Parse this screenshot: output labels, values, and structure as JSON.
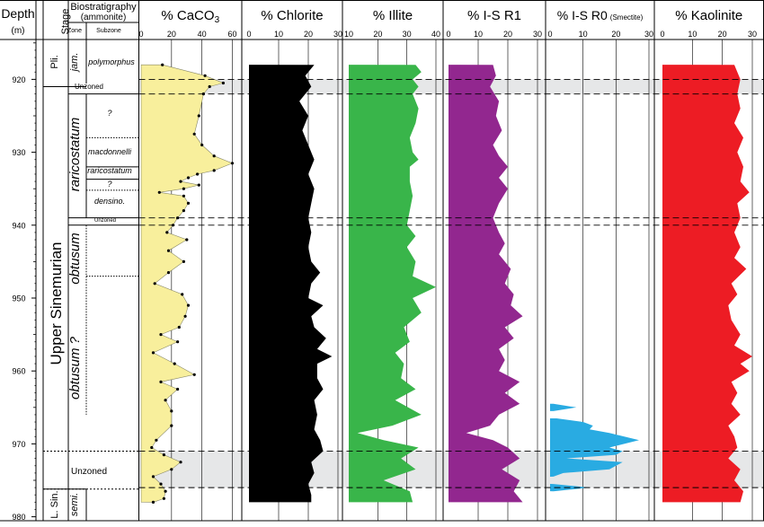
{
  "header": {
    "depth": "Depth",
    "depth_unit": "(m)",
    "stage": "Stage",
    "biostrat": "Biostratigraphy",
    "biostrat_sub": "(ammonite)",
    "zone": "Zone",
    "subzone": "Subzone"
  },
  "strat": {
    "stages": [
      "Pli.",
      "Upper Sinemurian",
      "L. Sin."
    ],
    "zones": [
      "jam.",
      "raricostatum",
      "obtusum",
      "obtusum ?",
      "semi."
    ],
    "subzones": [
      "polymorphus",
      "?",
      "macdonnelli",
      "raricostatum",
      "?",
      "densino."
    ],
    "unzoned": [
      "Unzoned",
      "Unzoned",
      "Unzoned"
    ]
  },
  "colors": {
    "caco3": "#f8ef9c",
    "chlorite": "#000000",
    "illite": "#39b54a",
    "isr1": "#92278f",
    "isr0": "#29abe2",
    "kaolinite": "#ed1c24",
    "band": "#e6e7e8"
  },
  "chart_data": {
    "type": "area",
    "y_axis": {
      "label": "Depth",
      "unit": "(m)",
      "range": [
        913,
        980
      ],
      "ticks": [
        920,
        930,
        940,
        950,
        960,
        970,
        980
      ],
      "inverted": true
    },
    "grey_bands": [
      [
        920,
        922
      ],
      [
        971,
        976
      ]
    ],
    "dashed_lines": [
      920,
      922,
      939,
      940,
      971,
      976
    ],
    "panels": [
      {
        "key": "caco3",
        "title_main": "% CaCO",
        "title_sub": "3",
        "xlim": [
          0,
          65
        ],
        "ticks": [
          0,
          20,
          40,
          60
        ],
        "style": "points",
        "points": [
          [
            918,
            14
          ],
          [
            919.5,
            42
          ],
          [
            920.5,
            54
          ],
          [
            921,
            45
          ],
          [
            922,
            41
          ],
          [
            925,
            38
          ],
          [
            927.5,
            35
          ],
          [
            929,
            40
          ],
          [
            930.5,
            48
          ],
          [
            931.5,
            60
          ],
          [
            932.5,
            48
          ],
          [
            933,
            37
          ],
          [
            933.5,
            31
          ],
          [
            934,
            26
          ],
          [
            934.5,
            38
          ],
          [
            935,
            28
          ],
          [
            935.5,
            12
          ],
          [
            936,
            28
          ],
          [
            937,
            31
          ],
          [
            938,
            28
          ],
          [
            939,
            24
          ],
          [
            940,
            21
          ],
          [
            941,
            17
          ],
          [
            942,
            30
          ],
          [
            943.5,
            18
          ],
          [
            945,
            28
          ],
          [
            946.5,
            18
          ],
          [
            948,
            9
          ],
          [
            949.5,
            27
          ],
          [
            951,
            31
          ],
          [
            952.5,
            29
          ],
          [
            954,
            25
          ],
          [
            955,
            13
          ],
          [
            956,
            24
          ],
          [
            957.5,
            8
          ],
          [
            959,
            22
          ],
          [
            960.5,
            35
          ],
          [
            961.5,
            13
          ],
          [
            962.5,
            24
          ],
          [
            964,
            16
          ],
          [
            965.5,
            20
          ],
          [
            967.5,
            20
          ],
          [
            969.5,
            10
          ],
          [
            970.5,
            7
          ],
          [
            971.5,
            15
          ],
          [
            972.5,
            26
          ],
          [
            973.5,
            20
          ],
          [
            974.5,
            8
          ],
          [
            975.5,
            13
          ],
          [
            976.5,
            16
          ],
          [
            977.5,
            15
          ],
          [
            978,
            8
          ]
        ]
      },
      {
        "key": "chlorite",
        "title_main": "% Chlorite",
        "title_sub": "",
        "xlim": [
          0,
          30
        ],
        "ticks": [
          0,
          10,
          20,
          30
        ],
        "style": "area",
        "points": [
          [
            918,
            22
          ],
          [
            919.5,
            19
          ],
          [
            921,
            21
          ],
          [
            923,
            17
          ],
          [
            925,
            20
          ],
          [
            927,
            18
          ],
          [
            929,
            20
          ],
          [
            931,
            22
          ],
          [
            933,
            20
          ],
          [
            935,
            22
          ],
          [
            937,
            21
          ],
          [
            939,
            20
          ],
          [
            941,
            21
          ],
          [
            943,
            20
          ],
          [
            945,
            21
          ],
          [
            946.5,
            24
          ],
          [
            948,
            21
          ],
          [
            950,
            20
          ],
          [
            951,
            25
          ],
          [
            952.5,
            21
          ],
          [
            954,
            22
          ],
          [
            955.5,
            26
          ],
          [
            957,
            23
          ],
          [
            958,
            28
          ],
          [
            959,
            23
          ],
          [
            961,
            23
          ],
          [
            962.5,
            25
          ],
          [
            964,
            22
          ],
          [
            966,
            23
          ],
          [
            968,
            22
          ],
          [
            969.5,
            24
          ],
          [
            971,
            25
          ],
          [
            972.5,
            21
          ],
          [
            974,
            22
          ],
          [
            975.5,
            20
          ],
          [
            977,
            21
          ],
          [
            978,
            21
          ]
        ]
      },
      {
        "key": "illite",
        "title_main": "% Illite",
        "title_sub": "",
        "xlim": [
          10,
          40
        ],
        "ticks": [
          10,
          20,
          30,
          40
        ],
        "style": "area",
        "points": [
          [
            918,
            33
          ],
          [
            919,
            35
          ],
          [
            920,
            32
          ],
          [
            921,
            34
          ],
          [
            922,
            32
          ],
          [
            924,
            34
          ],
          [
            926,
            33
          ],
          [
            928,
            31
          ],
          [
            930,
            32
          ],
          [
            931,
            34
          ],
          [
            932,
            31
          ],
          [
            934,
            31
          ],
          [
            936,
            32
          ],
          [
            938,
            31
          ],
          [
            940,
            30
          ],
          [
            941.5,
            33
          ],
          [
            943,
            30
          ],
          [
            945,
            33
          ],
          [
            947,
            32
          ],
          [
            948.5,
            40
          ],
          [
            950,
            32
          ],
          [
            952,
            35
          ],
          [
            954,
            29
          ],
          [
            956,
            31
          ],
          [
            957.5,
            26
          ],
          [
            959,
            29
          ],
          [
            961,
            28
          ],
          [
            962.5,
            33
          ],
          [
            964,
            26
          ],
          [
            966,
            35
          ],
          [
            967.5,
            25
          ],
          [
            968.5,
            13
          ],
          [
            969.5,
            22
          ],
          [
            970.5,
            34
          ],
          [
            972,
            28
          ],
          [
            973.5,
            33
          ],
          [
            975,
            22
          ],
          [
            976.5,
            31
          ],
          [
            978,
            32
          ]
        ]
      },
      {
        "key": "isr1",
        "title_main": "% I-S R1",
        "title_sub": "",
        "xlim": [
          0,
          30
        ],
        "ticks": [
          0,
          10,
          20,
          30
        ],
        "style": "area",
        "points": [
          [
            918,
            15
          ],
          [
            919.5,
            16
          ],
          [
            921,
            14
          ],
          [
            923,
            17
          ],
          [
            925,
            16
          ],
          [
            927,
            18
          ],
          [
            929,
            15
          ],
          [
            930.5,
            17
          ],
          [
            932,
            20
          ],
          [
            933.5,
            17
          ],
          [
            935,
            20
          ],
          [
            937,
            17
          ],
          [
            939,
            15
          ],
          [
            941,
            17
          ],
          [
            942.5,
            19
          ],
          [
            944,
            17
          ],
          [
            946,
            21
          ],
          [
            948,
            19
          ],
          [
            949.5,
            22
          ],
          [
            951,
            21
          ],
          [
            952.5,
            25
          ],
          [
            954,
            19
          ],
          [
            955.5,
            22
          ],
          [
            957,
            17
          ],
          [
            958.5,
            19
          ],
          [
            960,
            17
          ],
          [
            961.5,
            24
          ],
          [
            963,
            19
          ],
          [
            964.5,
            24
          ],
          [
            966,
            17
          ],
          [
            967.5,
            14
          ],
          [
            968.5,
            6
          ],
          [
            969.5,
            15
          ],
          [
            970.5,
            20
          ],
          [
            972,
            24
          ],
          [
            973.5,
            18
          ],
          [
            975,
            24
          ],
          [
            976.5,
            22
          ],
          [
            978,
            25
          ]
        ]
      },
      {
        "key": "isr0",
        "title_main": "% I-S R0",
        "title_sub": "(Smectite)",
        "xlim": [
          0,
          30
        ],
        "ticks": [
          0,
          10,
          20,
          30
        ],
        "style": "blocks",
        "blocks": [
          [
            [
              964.5,
              1
            ],
            [
              965,
              8
            ],
            [
              965.5,
              1
            ]
          ],
          [
            [
              966.5,
              2
            ],
            [
              967,
              10
            ],
            [
              967.5,
              13
            ],
            [
              968,
              12
            ],
            [
              968.5,
              18
            ],
            [
              969.5,
              27
            ],
            [
              970.5,
              18
            ],
            [
              971,
              22
            ],
            [
              971.5,
              20
            ],
            [
              972,
              5
            ],
            [
              972.5,
              22
            ],
            [
              973.5,
              18
            ],
            [
              974,
              4
            ],
            [
              974.5,
              1
            ]
          ],
          [
            [
              975.5,
              1
            ],
            [
              976,
              12
            ],
            [
              976.5,
              1
            ]
          ]
        ]
      },
      {
        "key": "kaolinite",
        "title_main": "% Kaolinite",
        "title_sub": "",
        "xlim": [
          0,
          30
        ],
        "ticks": [
          0,
          10,
          20,
          30
        ],
        "style": "area",
        "points": [
          [
            918,
            24
          ],
          [
            920,
            26
          ],
          [
            922,
            25
          ],
          [
            924,
            26
          ],
          [
            926,
            24
          ],
          [
            928,
            27
          ],
          [
            930,
            25
          ],
          [
            932,
            27
          ],
          [
            934,
            26
          ],
          [
            935.5,
            29
          ],
          [
            937,
            25
          ],
          [
            939,
            26
          ],
          [
            941,
            24
          ],
          [
            943,
            26
          ],
          [
            944.5,
            24
          ],
          [
            946,
            28
          ],
          [
            948,
            23
          ],
          [
            949.5,
            25
          ],
          [
            951,
            22
          ],
          [
            953,
            23
          ],
          [
            955,
            26
          ],
          [
            956.5,
            24
          ],
          [
            958,
            30
          ],
          [
            959,
            26
          ],
          [
            960,
            29
          ],
          [
            961.5,
            23
          ],
          [
            963,
            25
          ],
          [
            964.5,
            23
          ],
          [
            966,
            26
          ],
          [
            967.5,
            22
          ],
          [
            969,
            24
          ],
          [
            970.5,
            25
          ],
          [
            972,
            22
          ],
          [
            973.5,
            26
          ],
          [
            975,
            24
          ],
          [
            976.5,
            27
          ],
          [
            978,
            26
          ]
        ]
      }
    ]
  }
}
